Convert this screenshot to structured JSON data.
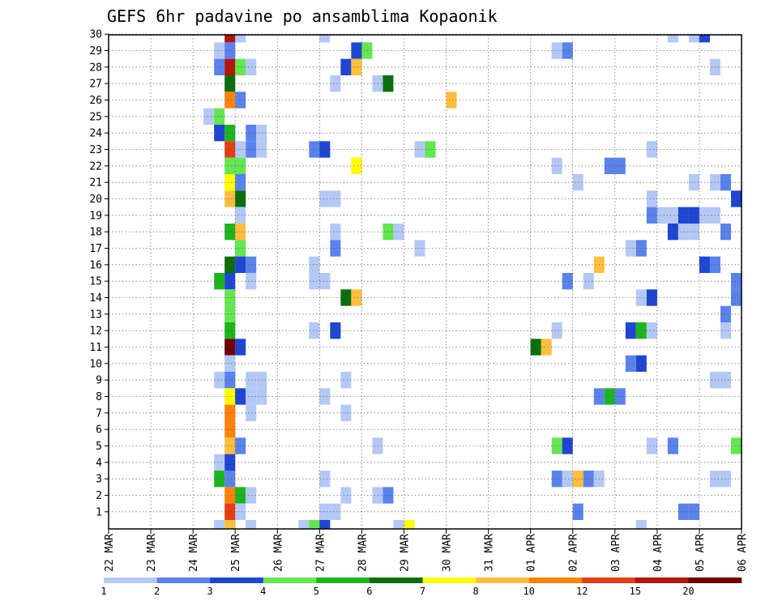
{
  "chart_data": {
    "type": "heatmap",
    "title": "GEFS 6hr padavine po ansamblima Kopaonik",
    "x_start": "2024-03-22",
    "steps_per_day": 4,
    "total_steps": 60,
    "x_tick_labels": [
      "22 MAR",
      "23 MAR",
      "24 MAR",
      "25 MAR",
      "26 MAR",
      "27 MAR",
      "28 MAR",
      "29 MAR",
      "30 MAR",
      "31 MAR",
      "01 APR",
      "02 APR",
      "03 APR",
      "04 APR",
      "05 APR",
      "06 APR"
    ],
    "y_tick_labels": [
      1,
      2,
      3,
      4,
      5,
      6,
      7,
      8,
      9,
      10,
      11,
      12,
      13,
      14,
      15,
      16,
      17,
      18,
      19,
      20,
      21,
      22,
      23,
      24,
      25,
      26,
      27,
      28,
      29,
      30
    ],
    "grid": true,
    "colorbar": {
      "labels": [
        "1",
        "2",
        "3",
        "4",
        "5",
        "6",
        "7",
        "8",
        "10",
        "12",
        "15",
        "20"
      ],
      "colors": [
        "#b4c8f5",
        "#5a82eb",
        "#1e46d2",
        "#64e650",
        "#1eb41e",
        "#0a6e0a",
        "#ffff00",
        "#ffbe3c",
        "#ff820a",
        "#e63c14",
        "#b4140a",
        "#6e0000"
      ]
    },
    "cells": [
      {
        "row": 30,
        "col": 11,
        "color": "#b4140a"
      },
      {
        "row": 30,
        "col": 12,
        "color": "#b4c8f5"
      },
      {
        "row": 30,
        "col": 20,
        "color": "#b4c8f5"
      },
      {
        "row": 30,
        "col": 53,
        "color": "#b4c8f5"
      },
      {
        "row": 30,
        "col": 55,
        "color": "#b4c8f5"
      },
      {
        "row": 30,
        "col": 56,
        "color": "#1e46d2"
      },
      {
        "row": 29,
        "col": 10,
        "color": "#b4c8f5"
      },
      {
        "row": 29,
        "col": 11,
        "color": "#5a82eb"
      },
      {
        "row": 29,
        "col": 23,
        "color": "#1e46d2"
      },
      {
        "row": 29,
        "col": 24,
        "color": "#64e650"
      },
      {
        "row": 29,
        "col": 42,
        "color": "#b4c8f5"
      },
      {
        "row": 29,
        "col": 43,
        "color": "#5a82eb"
      },
      {
        "row": 28,
        "col": 10,
        "color": "#5a82eb"
      },
      {
        "row": 28,
        "col": 11,
        "color": "#b4140a"
      },
      {
        "row": 28,
        "col": 12,
        "color": "#64e650"
      },
      {
        "row": 28,
        "col": 13,
        "color": "#b4c8f5"
      },
      {
        "row": 28,
        "col": 22,
        "color": "#1e46d2"
      },
      {
        "row": 28,
        "col": 23,
        "color": "#ffbe3c"
      },
      {
        "row": 28,
        "col": 57,
        "color": "#b4c8f5"
      },
      {
        "row": 27,
        "col": 11,
        "color": "#0a6e0a"
      },
      {
        "row": 27,
        "col": 21,
        "color": "#b4c8f5"
      },
      {
        "row": 27,
        "col": 25,
        "color": "#b4c8f5"
      },
      {
        "row": 27,
        "col": 26,
        "color": "#0a6e0a"
      },
      {
        "row": 26,
        "col": 11,
        "color": "#ff820a"
      },
      {
        "row": 26,
        "col": 12,
        "color": "#5a82eb"
      },
      {
        "row": 26,
        "col": 32,
        "color": "#ffbe3c"
      },
      {
        "row": 25,
        "col": 9,
        "color": "#b4c8f5"
      },
      {
        "row": 25,
        "col": 10,
        "color": "#64e650"
      },
      {
        "row": 24,
        "col": 10,
        "color": "#1e46d2"
      },
      {
        "row": 24,
        "col": 11,
        "color": "#1eb41e"
      },
      {
        "row": 24,
        "col": 13,
        "color": "#5a82eb"
      },
      {
        "row": 24,
        "col": 14,
        "color": "#b4c8f5"
      },
      {
        "row": 23,
        "col": 11,
        "color": "#e63c14"
      },
      {
        "row": 23,
        "col": 12,
        "color": "#b4c8f5"
      },
      {
        "row": 23,
        "col": 13,
        "color": "#5a82eb"
      },
      {
        "row": 23,
        "col": 14,
        "color": "#b4c8f5"
      },
      {
        "row": 23,
        "col": 19,
        "color": "#5a82eb"
      },
      {
        "row": 23,
        "col": 20,
        "color": "#1e46d2"
      },
      {
        "row": 23,
        "col": 29,
        "color": "#b4c8f5"
      },
      {
        "row": 23,
        "col": 30,
        "color": "#64e650"
      },
      {
        "row": 23,
        "col": 51,
        "color": "#b4c8f5"
      },
      {
        "row": 22,
        "col": 11,
        "color": "#64e650"
      },
      {
        "row": 22,
        "col": 12,
        "color": "#64e650"
      },
      {
        "row": 22,
        "col": 23,
        "color": "#ffff00"
      },
      {
        "row": 22,
        "col": 42,
        "color": "#b4c8f5"
      },
      {
        "row": 22,
        "col": 47,
        "color": "#5a82eb"
      },
      {
        "row": 22,
        "col": 48,
        "color": "#5a82eb"
      },
      {
        "row": 21,
        "col": 11,
        "color": "#ffff00"
      },
      {
        "row": 21,
        "col": 12,
        "color": "#5a82eb"
      },
      {
        "row": 21,
        "col": 44,
        "color": "#b4c8f5"
      },
      {
        "row": 21,
        "col": 55,
        "color": "#b4c8f5"
      },
      {
        "row": 21,
        "col": 57,
        "color": "#b4c8f5"
      },
      {
        "row": 21,
        "col": 58,
        "color": "#5a82eb"
      },
      {
        "row": 20,
        "col": 11,
        "color": "#ffbe3c"
      },
      {
        "row": 20,
        "col": 12,
        "color": "#0a6e0a"
      },
      {
        "row": 20,
        "col": 20,
        "color": "#b4c8f5"
      },
      {
        "row": 20,
        "col": 21,
        "color": "#b4c8f5"
      },
      {
        "row": 20,
        "col": 51,
        "color": "#b4c8f5"
      },
      {
        "row": 20,
        "col": 59,
        "color": "#1e46d2"
      },
      {
        "row": 19,
        "col": 12,
        "color": "#b4c8f5"
      },
      {
        "row": 19,
        "col": 51,
        "color": "#5a82eb"
      },
      {
        "row": 19,
        "col": 52,
        "color": "#b4c8f5"
      },
      {
        "row": 19,
        "col": 53,
        "color": "#b4c8f5"
      },
      {
        "row": 19,
        "col": 54,
        "color": "#1e46d2"
      },
      {
        "row": 19,
        "col": 55,
        "color": "#1e46d2"
      },
      {
        "row": 19,
        "col": 56,
        "color": "#b4c8f5"
      },
      {
        "row": 19,
        "col": 57,
        "color": "#b4c8f5"
      },
      {
        "row": 18,
        "col": 11,
        "color": "#1eb41e"
      },
      {
        "row": 18,
        "col": 12,
        "color": "#ffbe3c"
      },
      {
        "row": 18,
        "col": 21,
        "color": "#b4c8f5"
      },
      {
        "row": 18,
        "col": 26,
        "color": "#64e650"
      },
      {
        "row": 18,
        "col": 27,
        "color": "#b4c8f5"
      },
      {
        "row": 18,
        "col": 53,
        "color": "#1e46d2"
      },
      {
        "row": 18,
        "col": 54,
        "color": "#b4c8f5"
      },
      {
        "row": 18,
        "col": 55,
        "color": "#b4c8f5"
      },
      {
        "row": 18,
        "col": 58,
        "color": "#5a82eb"
      },
      {
        "row": 17,
        "col": 12,
        "color": "#64e650"
      },
      {
        "row": 17,
        "col": 21,
        "color": "#5a82eb"
      },
      {
        "row": 17,
        "col": 29,
        "color": "#b4c8f5"
      },
      {
        "row": 17,
        "col": 49,
        "color": "#b4c8f5"
      },
      {
        "row": 17,
        "col": 50,
        "color": "#5a82eb"
      },
      {
        "row": 16,
        "col": 11,
        "color": "#0a6e0a"
      },
      {
        "row": 16,
        "col": 12,
        "color": "#1e46d2"
      },
      {
        "row": 16,
        "col": 13,
        "color": "#5a82eb"
      },
      {
        "row": 16,
        "col": 19,
        "color": "#b4c8f5"
      },
      {
        "row": 16,
        "col": 46,
        "color": "#ffbe3c"
      },
      {
        "row": 16,
        "col": 56,
        "color": "#1e46d2"
      },
      {
        "row": 16,
        "col": 57,
        "color": "#5a82eb"
      },
      {
        "row": 15,
        "col": 10,
        "color": "#1eb41e"
      },
      {
        "row": 15,
        "col": 11,
        "color": "#1e46d2"
      },
      {
        "row": 15,
        "col": 13,
        "color": "#b4c8f5"
      },
      {
        "row": 15,
        "col": 19,
        "color": "#b4c8f5"
      },
      {
        "row": 15,
        "col": 20,
        "color": "#b4c8f5"
      },
      {
        "row": 15,
        "col": 43,
        "color": "#5a82eb"
      },
      {
        "row": 15,
        "col": 45,
        "color": "#b4c8f5"
      },
      {
        "row": 15,
        "col": 59,
        "color": "#5a82eb"
      },
      {
        "row": 14,
        "col": 11,
        "color": "#64e650"
      },
      {
        "row": 14,
        "col": 22,
        "color": "#0a6e0a"
      },
      {
        "row": 14,
        "col": 23,
        "color": "#ffbe3c"
      },
      {
        "row": 14,
        "col": 50,
        "color": "#b4c8f5"
      },
      {
        "row": 14,
        "col": 51,
        "color": "#1e46d2"
      },
      {
        "row": 14,
        "col": 59,
        "color": "#5a82eb"
      },
      {
        "row": 13,
        "col": 11,
        "color": "#64e650"
      },
      {
        "row": 13,
        "col": 58,
        "color": "#5a82eb"
      },
      {
        "row": 12,
        "col": 11,
        "color": "#1eb41e"
      },
      {
        "row": 12,
        "col": 19,
        "color": "#b4c8f5"
      },
      {
        "row": 12,
        "col": 21,
        "color": "#1e46d2"
      },
      {
        "row": 12,
        "col": 42,
        "color": "#b4c8f5"
      },
      {
        "row": 12,
        "col": 49,
        "color": "#1e46d2"
      },
      {
        "row": 12,
        "col": 50,
        "color": "#1eb41e"
      },
      {
        "row": 12,
        "col": 51,
        "color": "#b4c8f5"
      },
      {
        "row": 12,
        "col": 58,
        "color": "#b4c8f5"
      },
      {
        "row": 11,
        "col": 11,
        "color": "#6e0000"
      },
      {
        "row": 11,
        "col": 12,
        "color": "#1e46d2"
      },
      {
        "row": 11,
        "col": 40,
        "color": "#0a6e0a"
      },
      {
        "row": 11,
        "col": 41,
        "color": "#ffbe3c"
      },
      {
        "row": 10,
        "col": 11,
        "color": "#b4c8f5"
      },
      {
        "row": 10,
        "col": 49,
        "color": "#5a82eb"
      },
      {
        "row": 10,
        "col": 50,
        "color": "#1e46d2"
      },
      {
        "row": 9,
        "col": 10,
        "color": "#b4c8f5"
      },
      {
        "row": 9,
        "col": 11,
        "color": "#5a82eb"
      },
      {
        "row": 9,
        "col": 13,
        "color": "#b4c8f5"
      },
      {
        "row": 9,
        "col": 14,
        "color": "#b4c8f5"
      },
      {
        "row": 9,
        "col": 22,
        "color": "#b4c8f5"
      },
      {
        "row": 9,
        "col": 57,
        "color": "#b4c8f5"
      },
      {
        "row": 9,
        "col": 58,
        "color": "#b4c8f5"
      },
      {
        "row": 8,
        "col": 11,
        "color": "#ffff00"
      },
      {
        "row": 8,
        "col": 12,
        "color": "#1e46d2"
      },
      {
        "row": 8,
        "col": 13,
        "color": "#b4c8f5"
      },
      {
        "row": 8,
        "col": 14,
        "color": "#b4c8f5"
      },
      {
        "row": 8,
        "col": 20,
        "color": "#b4c8f5"
      },
      {
        "row": 8,
        "col": 46,
        "color": "#5a82eb"
      },
      {
        "row": 8,
        "col": 47,
        "color": "#1eb41e"
      },
      {
        "row": 8,
        "col": 48,
        "color": "#5a82eb"
      },
      {
        "row": 7,
        "col": 11,
        "color": "#ff820a"
      },
      {
        "row": 7,
        "col": 13,
        "color": "#b4c8f5"
      },
      {
        "row": 7,
        "col": 22,
        "color": "#b4c8f5"
      },
      {
        "row": 6,
        "col": 11,
        "color": "#ff820a"
      },
      {
        "row": 5,
        "col": 11,
        "color": "#ffbe3c"
      },
      {
        "row": 5,
        "col": 12,
        "color": "#5a82eb"
      },
      {
        "row": 5,
        "col": 25,
        "color": "#b4c8f5"
      },
      {
        "row": 5,
        "col": 42,
        "color": "#64e650"
      },
      {
        "row": 5,
        "col": 43,
        "color": "#1e46d2"
      },
      {
        "row": 5,
        "col": 51,
        "color": "#b4c8f5"
      },
      {
        "row": 5,
        "col": 53,
        "color": "#5a82eb"
      },
      {
        "row": 5,
        "col": 59,
        "color": "#64e650"
      },
      {
        "row": 4,
        "col": 10,
        "color": "#b4c8f5"
      },
      {
        "row": 4,
        "col": 11,
        "color": "#1e46d2"
      },
      {
        "row": 3,
        "col": 10,
        "color": "#1eb41e"
      },
      {
        "row": 3,
        "col": 11,
        "color": "#5a82eb"
      },
      {
        "row": 3,
        "col": 20,
        "color": "#b4c8f5"
      },
      {
        "row": 3,
        "col": 42,
        "color": "#5a82eb"
      },
      {
        "row": 3,
        "col": 43,
        "color": "#b4c8f5"
      },
      {
        "row": 3,
        "col": 44,
        "color": "#ffbe3c"
      },
      {
        "row": 3,
        "col": 45,
        "color": "#5a82eb"
      },
      {
        "row": 3,
        "col": 46,
        "color": "#b4c8f5"
      },
      {
        "row": 3,
        "col": 57,
        "color": "#b4c8f5"
      },
      {
        "row": 3,
        "col": 58,
        "color": "#b4c8f5"
      },
      {
        "row": 2,
        "col": 11,
        "color": "#ff820a"
      },
      {
        "row": 2,
        "col": 12,
        "color": "#1eb41e"
      },
      {
        "row": 2,
        "col": 13,
        "color": "#b4c8f5"
      },
      {
        "row": 2,
        "col": 22,
        "color": "#b4c8f5"
      },
      {
        "row": 2,
        "col": 25,
        "color": "#b4c8f5"
      },
      {
        "row": 2,
        "col": 26,
        "color": "#5a82eb"
      },
      {
        "row": 1,
        "col": 11,
        "color": "#e63c14"
      },
      {
        "row": 1,
        "col": 12,
        "color": "#b4c8f5"
      },
      {
        "row": 1,
        "col": 20,
        "color": "#b4c8f5"
      },
      {
        "row": 1,
        "col": 21,
        "color": "#b4c8f5"
      },
      {
        "row": 1,
        "col": 44,
        "color": "#5a82eb"
      },
      {
        "row": 1,
        "col": 54,
        "color": "#5a82eb"
      },
      {
        "row": 1,
        "col": 55,
        "color": "#5a82eb"
      },
      {
        "row": 0,
        "col": 10,
        "color": "#b4c8f5"
      },
      {
        "row": 0,
        "col": 11,
        "color": "#ffbe3c"
      },
      {
        "row": 0,
        "col": 13,
        "color": "#b4c8f5"
      },
      {
        "row": 0,
        "col": 18,
        "color": "#b4c8f5"
      },
      {
        "row": 0,
        "col": 19,
        "color": "#64e650"
      },
      {
        "row": 0,
        "col": 20,
        "color": "#1e46d2"
      },
      {
        "row": 0,
        "col": 27,
        "color": "#b4c8f5"
      },
      {
        "row": 0,
        "col": 28,
        "color": "#ffff00"
      },
      {
        "row": 0,
        "col": 50,
        "color": "#b4c8f5"
      }
    ]
  }
}
